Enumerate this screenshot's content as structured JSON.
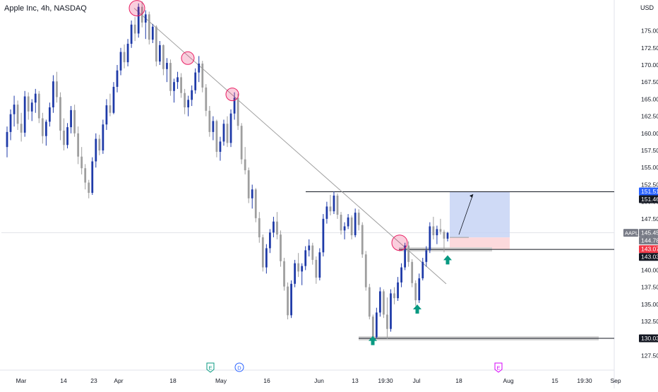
{
  "title": "Apple Inc, 4h, NASDAQ",
  "currency": "USD",
  "symbol_badge": "AAPL",
  "colors": {
    "up": "#1e3aa8",
    "down": "#9e9e9e",
    "trendline": "#9e9e9e",
    "highlight": "#e91e63",
    "target_zone": "#c7d4f5",
    "stop_zone": "#fcd5d8",
    "support_band": "#d0d0d0",
    "arrow": "#089981",
    "price_badge_blue": "#2962ff",
    "price_badge_red": "#f23645",
    "price_badge_dark": "#131722",
    "price_badge_gray": "#787b86"
  },
  "chart_data": {
    "type": "candlestick",
    "ylim": [
      126.0,
      179.5
    ],
    "y_ticks": [
      "175.00",
      "172.50",
      "170.00",
      "167.50",
      "165.00",
      "162.50",
      "160.00",
      "157.50",
      "155.00",
      "152.50",
      "150.00",
      "147.50",
      "145.00",
      "142.50",
      "140.00",
      "137.50",
      "135.00",
      "132.50",
      "130.00",
      "127.50"
    ],
    "x_ticks": [
      "Mar",
      "14",
      "23",
      "Apr",
      "18",
      "May",
      "16",
      "Jun",
      "13",
      "19:30",
      "Jul",
      "18",
      "Aug",
      "15",
      "19:30",
      "Sep"
    ],
    "price_labels": [
      {
        "text": "151.51",
        "value": 151.51,
        "style": "blue"
      },
      {
        "text": "151.46",
        "value": 151.46,
        "style": "dark"
      },
      {
        "text": "145.45",
        "value": 145.45,
        "style": "gray"
      },
      {
        "text": "144.78",
        "value": 144.78,
        "style": "gray"
      },
      {
        "text": "143.07",
        "value": 143.07,
        "style": "red"
      },
      {
        "text": "143.03",
        "value": 143.03,
        "style": "dark"
      },
      {
        "text": "130.03",
        "value": 130.03,
        "style": "dark"
      }
    ],
    "horizontal_levels": [
      151.46,
      143.03,
      130.03
    ],
    "support_bands": [
      {
        "value": 143.03,
        "from": "end of Jun",
        "to": "Jul"
      },
      {
        "value": 130.03,
        "from": "mid Jun",
        "to": "mid Aug"
      }
    ],
    "trendline": {
      "from": 178.3,
      "to": 138.0
    },
    "touch_points": [
      178.3,
      171.0,
      165.7,
      144.0
    ],
    "long_position": {
      "entry": 144.78,
      "target": 151.51,
      "stop": 143.07
    },
    "event_markers": [
      {
        "label": "E",
        "style": "earnings-green"
      },
      {
        "label": "D",
        "style": "dividend-blue"
      },
      {
        "label": "E",
        "style": "earnings-magenta"
      }
    ],
    "ohlc": [
      [
        158.0,
        161.0,
        156.5,
        160.2
      ],
      [
        160.2,
        163.5,
        159.0,
        162.8
      ],
      [
        162.8,
        165.5,
        161.0,
        164.2
      ],
      [
        164.2,
        164.8,
        160.5,
        161.4
      ],
      [
        161.4,
        163.0,
        158.8,
        160.1
      ],
      [
        160.1,
        166.2,
        159.5,
        165.4
      ],
      [
        165.4,
        166.0,
        162.0,
        163.2
      ],
      [
        163.2,
        165.0,
        161.8,
        164.5
      ],
      [
        164.5,
        166.5,
        163.0,
        165.8
      ],
      [
        165.8,
        166.2,
        161.5,
        162.2
      ],
      [
        162.2,
        163.0,
        158.5,
        159.6
      ],
      [
        159.6,
        162.0,
        158.2,
        161.7
      ],
      [
        161.7,
        164.5,
        161.0,
        163.8
      ],
      [
        163.8,
        168.5,
        163.0,
        167.6
      ],
      [
        167.6,
        169.0,
        164.5,
        165.3
      ],
      [
        165.3,
        166.0,
        159.0,
        160.4
      ],
      [
        160.4,
        162.2,
        157.5,
        158.3
      ],
      [
        158.3,
        161.5,
        157.8,
        160.9
      ],
      [
        160.9,
        164.0,
        160.0,
        163.4
      ],
      [
        163.4,
        164.2,
        159.5,
        160.0
      ],
      [
        160.0,
        161.0,
        155.5,
        156.6
      ],
      [
        156.6,
        158.0,
        154.0,
        154.9
      ],
      [
        154.9,
        155.5,
        151.8,
        152.8
      ],
      [
        152.8,
        153.2,
        150.5,
        151.3
      ],
      [
        151.3,
        156.5,
        151.0,
        155.9
      ],
      [
        155.9,
        160.0,
        155.0,
        159.2
      ],
      [
        159.2,
        159.8,
        156.8,
        157.5
      ],
      [
        157.5,
        162.0,
        157.0,
        161.3
      ],
      [
        161.3,
        165.0,
        160.5,
        164.1
      ],
      [
        164.1,
        165.8,
        162.5,
        163.0
      ],
      [
        163.0,
        167.5,
        162.8,
        166.8
      ],
      [
        166.8,
        170.0,
        166.0,
        169.2
      ],
      [
        169.2,
        172.5,
        168.5,
        171.9
      ],
      [
        171.9,
        173.0,
        169.5,
        170.4
      ],
      [
        170.4,
        173.8,
        169.8,
        173.1
      ],
      [
        173.1,
        176.5,
        172.5,
        175.9
      ],
      [
        175.9,
        177.0,
        173.5,
        174.6
      ],
      [
        174.6,
        179.0,
        174.0,
        178.5
      ],
      [
        178.5,
        179.3,
        175.5,
        176.2
      ],
      [
        176.2,
        178.0,
        173.8,
        177.4
      ],
      [
        177.4,
        177.8,
        173.0,
        173.7
      ],
      [
        173.7,
        176.0,
        173.2,
        175.6
      ],
      [
        175.6,
        175.8,
        169.8,
        170.5
      ],
      [
        170.5,
        173.5,
        170.0,
        172.9
      ],
      [
        172.9,
        173.0,
        168.5,
        169.4
      ],
      [
        169.4,
        171.0,
        167.5,
        170.3
      ],
      [
        170.3,
        170.8,
        165.5,
        166.2
      ],
      [
        166.2,
        168.0,
        164.5,
        167.5
      ],
      [
        167.5,
        169.0,
        166.5,
        168.2
      ],
      [
        168.2,
        168.8,
        165.2,
        165.9
      ],
      [
        165.9,
        166.5,
        162.8,
        163.8
      ],
      [
        163.8,
        165.5,
        162.5,
        164.9
      ],
      [
        164.9,
        167.0,
        164.0,
        166.3
      ],
      [
        166.3,
        169.5,
        165.8,
        168.9
      ],
      [
        168.9,
        171.3,
        167.5,
        170.2
      ],
      [
        170.2,
        170.6,
        166.0,
        166.7
      ],
      [
        166.7,
        167.2,
        162.5,
        163.3
      ],
      [
        163.3,
        164.0,
        159.5,
        160.2
      ],
      [
        160.2,
        162.5,
        159.0,
        161.8
      ],
      [
        161.8,
        162.0,
        156.5,
        157.3
      ],
      [
        157.3,
        159.5,
        156.0,
        158.8
      ],
      [
        158.8,
        162.0,
        158.2,
        161.4
      ],
      [
        161.4,
        162.5,
        158.0,
        158.6
      ],
      [
        158.6,
        163.5,
        158.0,
        162.9
      ],
      [
        162.9,
        166.0,
        162.0,
        165.2
      ],
      [
        165.2,
        165.8,
        160.5,
        161.1
      ],
      [
        161.1,
        161.5,
        155.5,
        156.2
      ],
      [
        156.2,
        158.0,
        154.0,
        154.6
      ],
      [
        154.6,
        155.0,
        149.8,
        150.5
      ],
      [
        150.5,
        152.5,
        149.0,
        151.8
      ],
      [
        151.8,
        152.0,
        147.0,
        147.6
      ],
      [
        147.6,
        148.5,
        144.0,
        144.8
      ],
      [
        144.8,
        145.2,
        139.8,
        140.4
      ],
      [
        140.4,
        143.8,
        139.5,
        143.2
      ],
      [
        143.2,
        146.0,
        142.5,
        145.5
      ],
      [
        145.5,
        147.8,
        144.8,
        147.1
      ],
      [
        147.1,
        148.5,
        144.5,
        145.2
      ],
      [
        145.2,
        145.8,
        140.5,
        141.3
      ],
      [
        141.3,
        141.8,
        137.0,
        137.6
      ],
      [
        137.6,
        138.2,
        132.8,
        133.4
      ],
      [
        133.4,
        138.5,
        133.0,
        138.0
      ],
      [
        138.0,
        141.5,
        137.5,
        141.0
      ],
      [
        141.0,
        142.5,
        139.0,
        139.8
      ],
      [
        139.8,
        141.0,
        137.8,
        140.6
      ],
      [
        140.6,
        143.5,
        140.0,
        142.9
      ],
      [
        142.9,
        144.5,
        142.0,
        143.6
      ],
      [
        143.6,
        144.0,
        140.8,
        141.5
      ],
      [
        141.5,
        142.0,
        138.0,
        138.9
      ],
      [
        138.9,
        143.2,
        138.5,
        142.6
      ],
      [
        142.6,
        148.2,
        142.0,
        147.5
      ],
      [
        147.5,
        150.0,
        146.8,
        149.3
      ],
      [
        149.3,
        151.0,
        148.0,
        148.6
      ],
      [
        148.6,
        151.5,
        148.2,
        150.9
      ],
      [
        150.9,
        151.2,
        147.5,
        148.1
      ],
      [
        148.1,
        148.5,
        145.2,
        145.8
      ],
      [
        145.8,
        147.0,
        144.5,
        146.4
      ],
      [
        146.4,
        148.2,
        146.0,
        147.7
      ],
      [
        147.7,
        148.0,
        144.5,
        145.1
      ],
      [
        145.1,
        149.0,
        144.8,
        148.4
      ],
      [
        148.4,
        148.9,
        145.8,
        146.6
      ],
      [
        146.6,
        147.0,
        141.8,
        142.3
      ],
      [
        142.3,
        142.8,
        137.0,
        137.5
      ],
      [
        137.5,
        138.0,
        132.8,
        133.2
      ],
      [
        133.2,
        133.5,
        129.8,
        130.2
      ],
      [
        130.2,
        134.5,
        130.0,
        133.8
      ],
      [
        133.8,
        137.5,
        133.2,
        136.9
      ],
      [
        136.9,
        137.2,
        133.0,
        133.5
      ],
      [
        133.5,
        136.0,
        130.0,
        131.4
      ],
      [
        131.4,
        137.2,
        131.0,
        136.6
      ],
      [
        136.6,
        137.5,
        135.0,
        135.9
      ],
      [
        135.9,
        139.0,
        135.5,
        138.2
      ],
      [
        138.2,
        141.0,
        137.5,
        140.4
      ],
      [
        140.4,
        144.0,
        140.0,
        143.6
      ],
      [
        143.6,
        144.2,
        140.5,
        141.2
      ],
      [
        141.2,
        141.6,
        137.5,
        138.1
      ],
      [
        138.1,
        138.5,
        134.8,
        135.6
      ],
      [
        135.6,
        139.5,
        135.2,
        138.8
      ],
      [
        138.8,
        141.8,
        138.5,
        141.2
      ],
      [
        141.2,
        143.5,
        140.5,
        142.9
      ],
      [
        142.9,
        147.0,
        142.5,
        146.4
      ],
      [
        146.4,
        147.8,
        144.5,
        145.1
      ],
      [
        145.1,
        146.5,
        143.8,
        146.0
      ],
      [
        146.0,
        147.5,
        145.2,
        145.6
      ],
      [
        145.6,
        145.9,
        142.6,
        144.6
      ],
      [
        144.6,
        145.6,
        144.2,
        145.45
      ]
    ]
  }
}
